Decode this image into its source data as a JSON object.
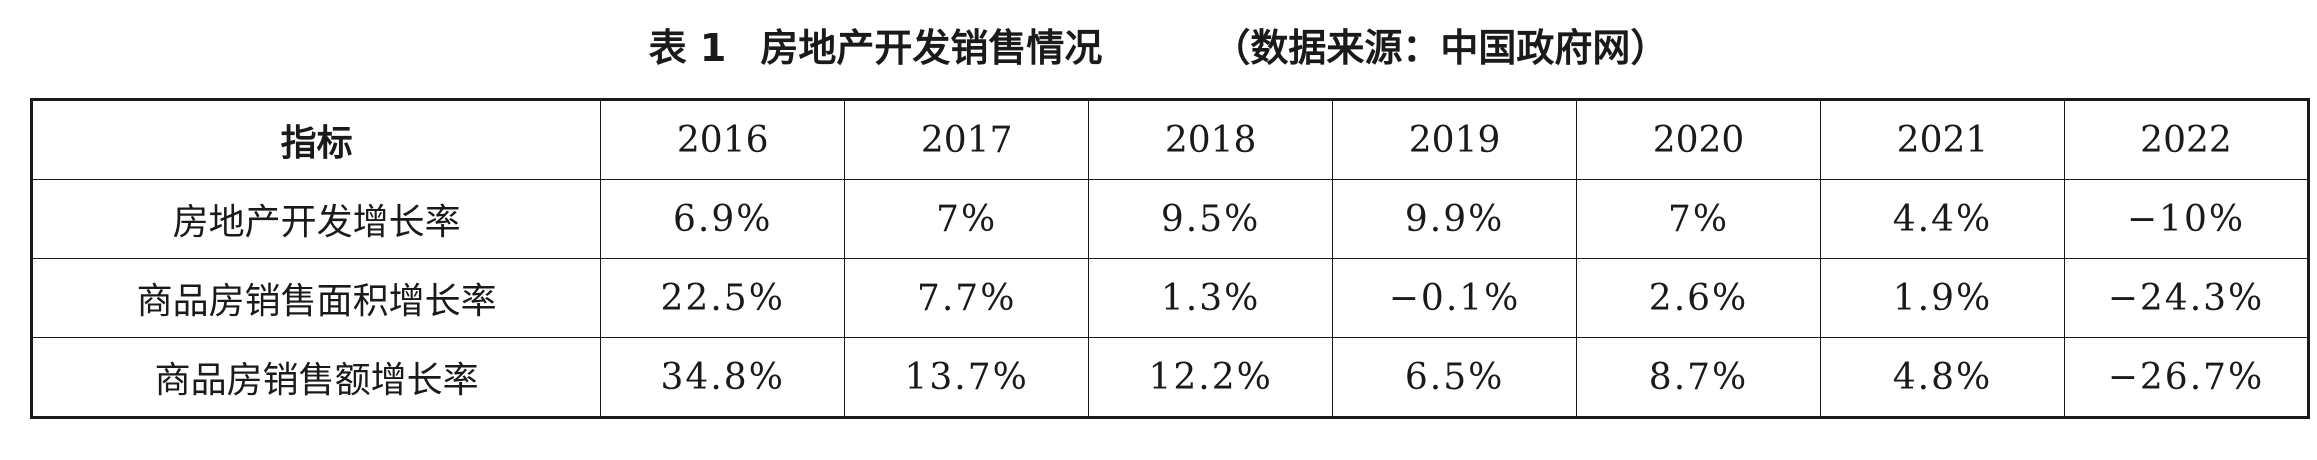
{
  "caption": {
    "number": "表 1",
    "title": "房地产开发销售情况",
    "source": "（数据来源：中国政府网）"
  },
  "table": {
    "header_label": "指标",
    "years": [
      "2016",
      "2017",
      "2018",
      "2019",
      "2020",
      "2021",
      "2022"
    ],
    "rows": [
      {
        "label": "房地产开发增长率",
        "values": [
          "6.9%",
          "7%",
          "9.5%",
          "9.9%",
          "7%",
          "4.4%",
          "−10%"
        ]
      },
      {
        "label": "商品房销售面积增长率",
        "values": [
          "22.5%",
          "7.7%",
          "1.3%",
          "−0.1%",
          "2.6%",
          "1.9%",
          "−24.3%"
        ]
      },
      {
        "label": "商品房销售额增长率",
        "values": [
          "34.8%",
          "13.7%",
          "12.2%",
          "6.5%",
          "8.7%",
          "4.8%",
          "−26.7%"
        ]
      }
    ]
  }
}
